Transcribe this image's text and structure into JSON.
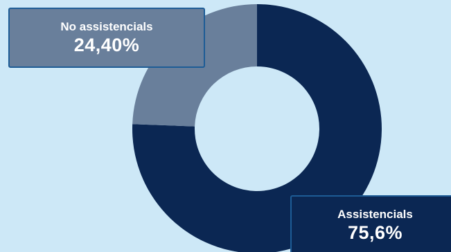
{
  "chart_data": {
    "type": "pie",
    "variant": "donut",
    "categories": [
      "No assistencials",
      "Assistencials"
    ],
    "values": [
      24.4,
      75.6
    ],
    "value_labels": [
      "24,40%",
      "75,6%"
    ],
    "colors": [
      "#697f9b",
      "#0b2753"
    ],
    "legend": "none",
    "title": ""
  },
  "colors": {
    "background": "#cde8f7",
    "hole": "#cde8f7",
    "callout_border": "#1d5c96"
  }
}
